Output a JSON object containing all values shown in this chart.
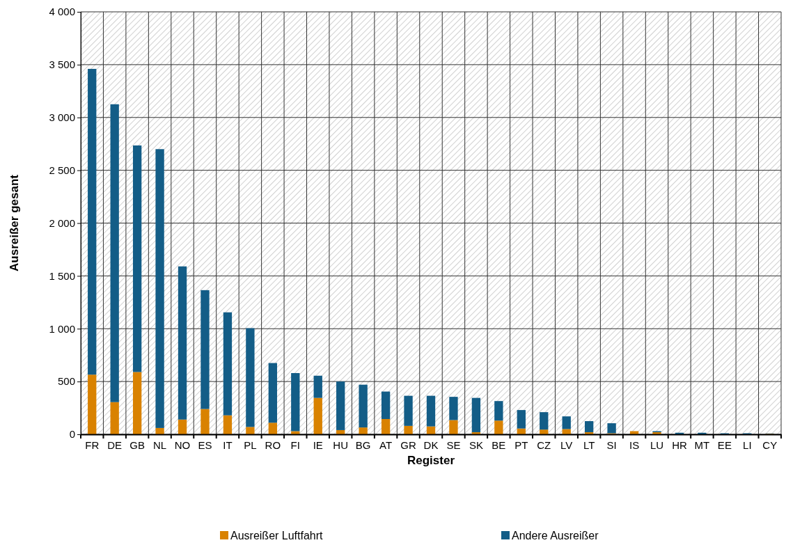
{
  "chart_data": {
    "type": "bar",
    "stacked": true,
    "xlabel": "Register",
    "ylabel": "Ausreißer gesant",
    "categories": [
      "FR",
      "DE",
      "GB",
      "NL",
      "NO",
      "ES",
      "IT",
      "PL",
      "RO",
      "FI",
      "IE",
      "HU",
      "BG",
      "AT",
      "GR",
      "DK",
      "SE",
      "SK",
      "BE",
      "PT",
      "CZ",
      "LV",
      "LT",
      "SI",
      "IS",
      "LU",
      "HR",
      "MT",
      "EE",
      "LI",
      "CY"
    ],
    "series": [
      {
        "name": "Ausreißer Luftfahrt",
        "color": "#d98200",
        "values": [
          565,
          305,
          590,
          60,
          140,
          240,
          180,
          70,
          110,
          30,
          345,
          40,
          65,
          145,
          80,
          75,
          135,
          20,
          130,
          55,
          45,
          50,
          20,
          10,
          30,
          20,
          null,
          null,
          0,
          0,
          5
        ]
      },
      {
        "name": "Andere Ausreißer",
        "color": "#135d87",
        "values": [
          2895,
          2820,
          2145,
          2640,
          1450,
          1125,
          975,
          935,
          565,
          550,
          210,
          460,
          405,
          260,
          285,
          290,
          220,
          325,
          185,
          175,
          165,
          120,
          105,
          95,
          0,
          10,
          15,
          15,
          10,
          10,
          3
        ]
      }
    ],
    "ylim": [
      0,
      4000
    ],
    "yticks": [
      {
        "value": 0,
        "label": "0"
      },
      {
        "value": 500,
        "label": "500"
      },
      {
        "value": 1000,
        "label": "1 000"
      },
      {
        "value": 1500,
        "label": "1 500"
      },
      {
        "value": 2000,
        "label": "2 000"
      },
      {
        "value": 2500,
        "label": "2 500"
      },
      {
        "value": 3000,
        "label": "3 000"
      },
      {
        "value": 3500,
        "label": "3 500"
      },
      {
        "value": 4000,
        "label": "4 000"
      }
    ],
    "grid": true,
    "legend": "bottom"
  }
}
